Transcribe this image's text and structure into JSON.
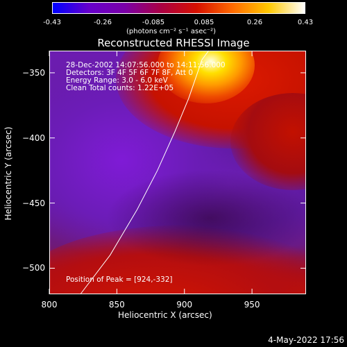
{
  "colorbar": {
    "ticks": [
      "-0.43",
      "-0.26",
      "-0.085",
      "0.085",
      "0.26",
      "0.43"
    ],
    "tick_values": [
      -0.43,
      -0.26,
      -0.085,
      0.085,
      0.26,
      0.43
    ],
    "range": [
      -0.43,
      0.43
    ],
    "colors": [
      "#0000ff",
      "#6600cc",
      "#7a00a8",
      "#aa0044",
      "#d61000",
      "#ff6a00",
      "#ffc800",
      "#ffffff"
    ],
    "units": "(photons cm⁻² s⁻¹ asec⁻²)"
  },
  "chart_data": {
    "type": "heatmap",
    "title": "Reconstructed RHESSI Image",
    "xlabel": "Heliocentric X (arcsec)",
    "ylabel": "Heliocentric Y (arcsec)",
    "xlim": [
      800,
      990
    ],
    "ylim": [
      -520,
      -333
    ],
    "x_ticks": [
      800,
      850,
      900,
      950
    ],
    "y_ticks": [
      -350,
      -400,
      -450,
      -500
    ],
    "x_tick_labels": [
      "800",
      "850",
      "900",
      "950"
    ],
    "y_tick_labels": [
      "−350",
      "−400",
      "−450",
      "−500"
    ],
    "peak": [
      924,
      -332
    ],
    "limb_curve": [
      [
        823,
        -520
      ],
      [
        845,
        -490
      ],
      [
        865,
        -455
      ],
      [
        880,
        -425
      ],
      [
        893,
        -395
      ],
      [
        903,
        -370
      ],
      [
        913,
        -340
      ],
      [
        918,
        -333
      ]
    ],
    "annotations": [
      "28-Dec-2002 14:07:56.000 to 14:11:56.000",
      "Detectors: 3F 4F 5F 6F 7F 8F, Att 0",
      "Energy Range: 3.0 - 6.0 keV",
      "Clean    Total counts: 1.22E+05"
    ],
    "peak_label": "Position of Peak = [924,-332]"
  },
  "footer": {
    "date": "4-May-2022 17:56"
  }
}
